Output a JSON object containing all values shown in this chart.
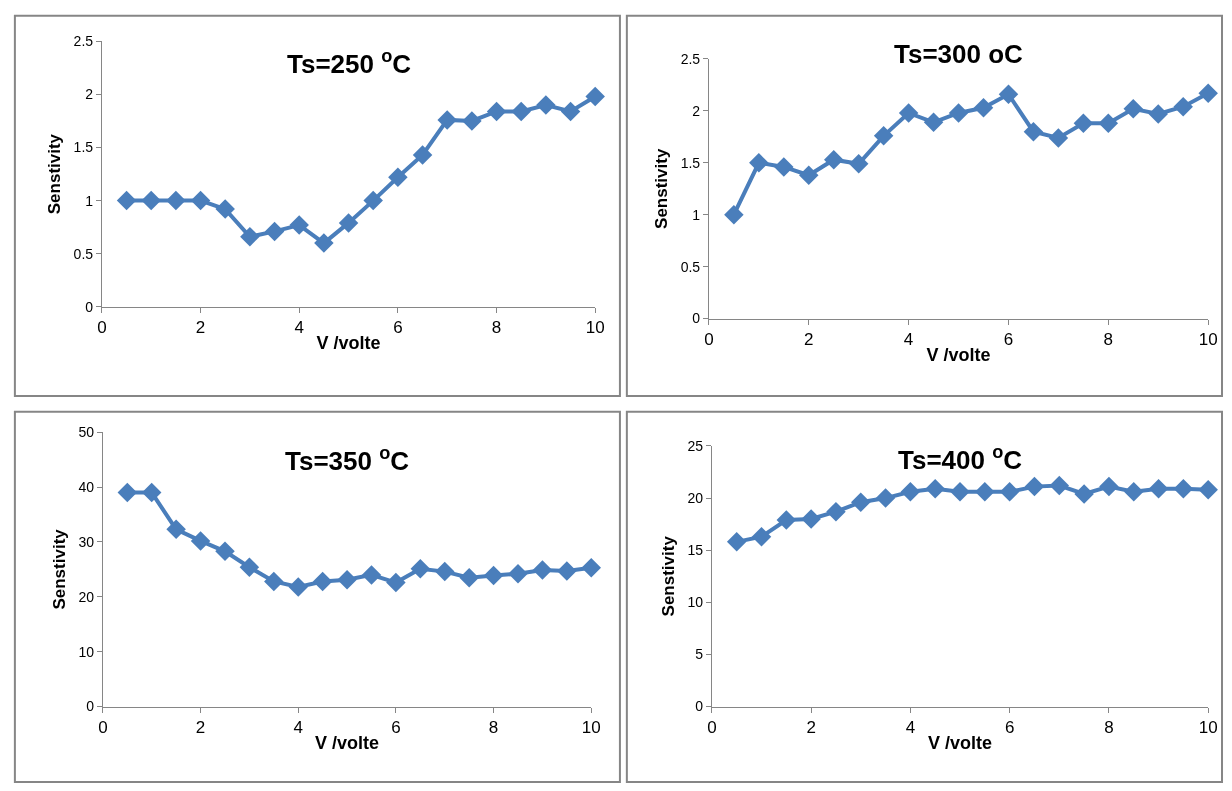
{
  "chart_data": [
    {
      "type": "line",
      "title": "Ts=250 $^{o}$C",
      "xlabel": "V /volte",
      "ylabel": "Senstivity",
      "x": [
        0.5,
        1,
        1.5,
        2,
        2.5,
        3,
        3.5,
        4,
        4.5,
        5,
        5.5,
        6,
        6.5,
        7,
        7.5,
        8,
        8.5,
        9,
        9.5,
        10
      ],
      "series": [
        {
          "color": "#4a7ebb",
          "values": [
            1.0,
            1.0,
            1.0,
            1.0,
            0.92,
            0.66,
            0.71,
            0.77,
            0.6,
            0.79,
            1.0,
            1.22,
            1.43,
            1.76,
            1.75,
            1.84,
            1.84,
            1.9,
            1.84,
            1.98
          ]
        }
      ],
      "xlim": [
        0,
        10
      ],
      "xticks": [
        0,
        2,
        4,
        6,
        8,
        10
      ],
      "ylim": [
        0,
        2.5
      ],
      "yticks": [
        0,
        0.5,
        1,
        1.5,
        2,
        2.5
      ],
      "marker": "diamond"
    },
    {
      "type": "line",
      "title": "Ts=300 oC",
      "xlabel": "V /volte",
      "ylabel": "Senstivity",
      "x": [
        0.5,
        1,
        1.5,
        2,
        2.5,
        3,
        3.5,
        4,
        4.5,
        5,
        5.5,
        6,
        6.5,
        7,
        7.5,
        8,
        8.5,
        9,
        9.5,
        10
      ],
      "series": [
        {
          "color": "#4a7ebb",
          "values": [
            1.0,
            1.5,
            1.46,
            1.38,
            1.53,
            1.49,
            1.76,
            1.98,
            1.89,
            1.98,
            2.03,
            2.16,
            1.8,
            1.74,
            1.88,
            1.88,
            2.02,
            1.97,
            2.04,
            2.17
          ]
        }
      ],
      "xlim": [
        0,
        10
      ],
      "xticks": [
        0,
        2,
        4,
        6,
        8,
        10
      ],
      "ylim": [
        0,
        2.5
      ],
      "yticks": [
        0,
        0.5,
        1,
        1.5,
        2,
        2.5
      ],
      "marker": "diamond"
    },
    {
      "type": "line",
      "title": "Ts=350 $^{o}$C",
      "xlabel": "V /volte",
      "ylabel": "Senstivity",
      "x": [
        0.5,
        1,
        1.5,
        2,
        2.5,
        3,
        3.5,
        4,
        4.5,
        5,
        5.5,
        6,
        6.5,
        7,
        7.5,
        8,
        8.5,
        9,
        9.5,
        10
      ],
      "series": [
        {
          "color": "#4a7ebb",
          "values": [
            39,
            39,
            32.3,
            30.2,
            28.3,
            25.4,
            22.8,
            21.8,
            22.8,
            23.1,
            24.0,
            22.6,
            25.1,
            24.6,
            23.5,
            23.9,
            24.2,
            24.9,
            24.7,
            25.3
          ]
        }
      ],
      "xlim": [
        0,
        10
      ],
      "xticks": [
        0,
        2,
        4,
        6,
        8,
        10
      ],
      "ylim": [
        0,
        50
      ],
      "yticks": [
        0,
        10,
        20,
        30,
        40,
        50
      ],
      "marker": "diamond"
    },
    {
      "type": "line",
      "title": "Ts=400 $^{o}$C",
      "xlabel": "V /volte",
      "ylabel": "Senstivity",
      "x": [
        0.5,
        1,
        1.5,
        2,
        2.5,
        3,
        3.5,
        4,
        4.5,
        5,
        5.5,
        6,
        6.5,
        7,
        7.5,
        8,
        8.5,
        9,
        9.5,
        10
      ],
      "series": [
        {
          "color": "#4a7ebb",
          "values": [
            15.8,
            16.3,
            17.9,
            18.0,
            18.7,
            19.6,
            20.0,
            20.6,
            20.9,
            20.6,
            20.6,
            20.6,
            21.1,
            21.2,
            20.4,
            21.1,
            20.6,
            20.9,
            20.9,
            20.8
          ]
        }
      ],
      "xlim": [
        0,
        10
      ],
      "xticks": [
        0,
        2,
        4,
        6,
        8,
        10
      ],
      "ylim": [
        0,
        25
      ],
      "yticks": [
        0,
        5,
        10,
        15,
        20,
        25
      ],
      "marker": "diamond"
    }
  ]
}
